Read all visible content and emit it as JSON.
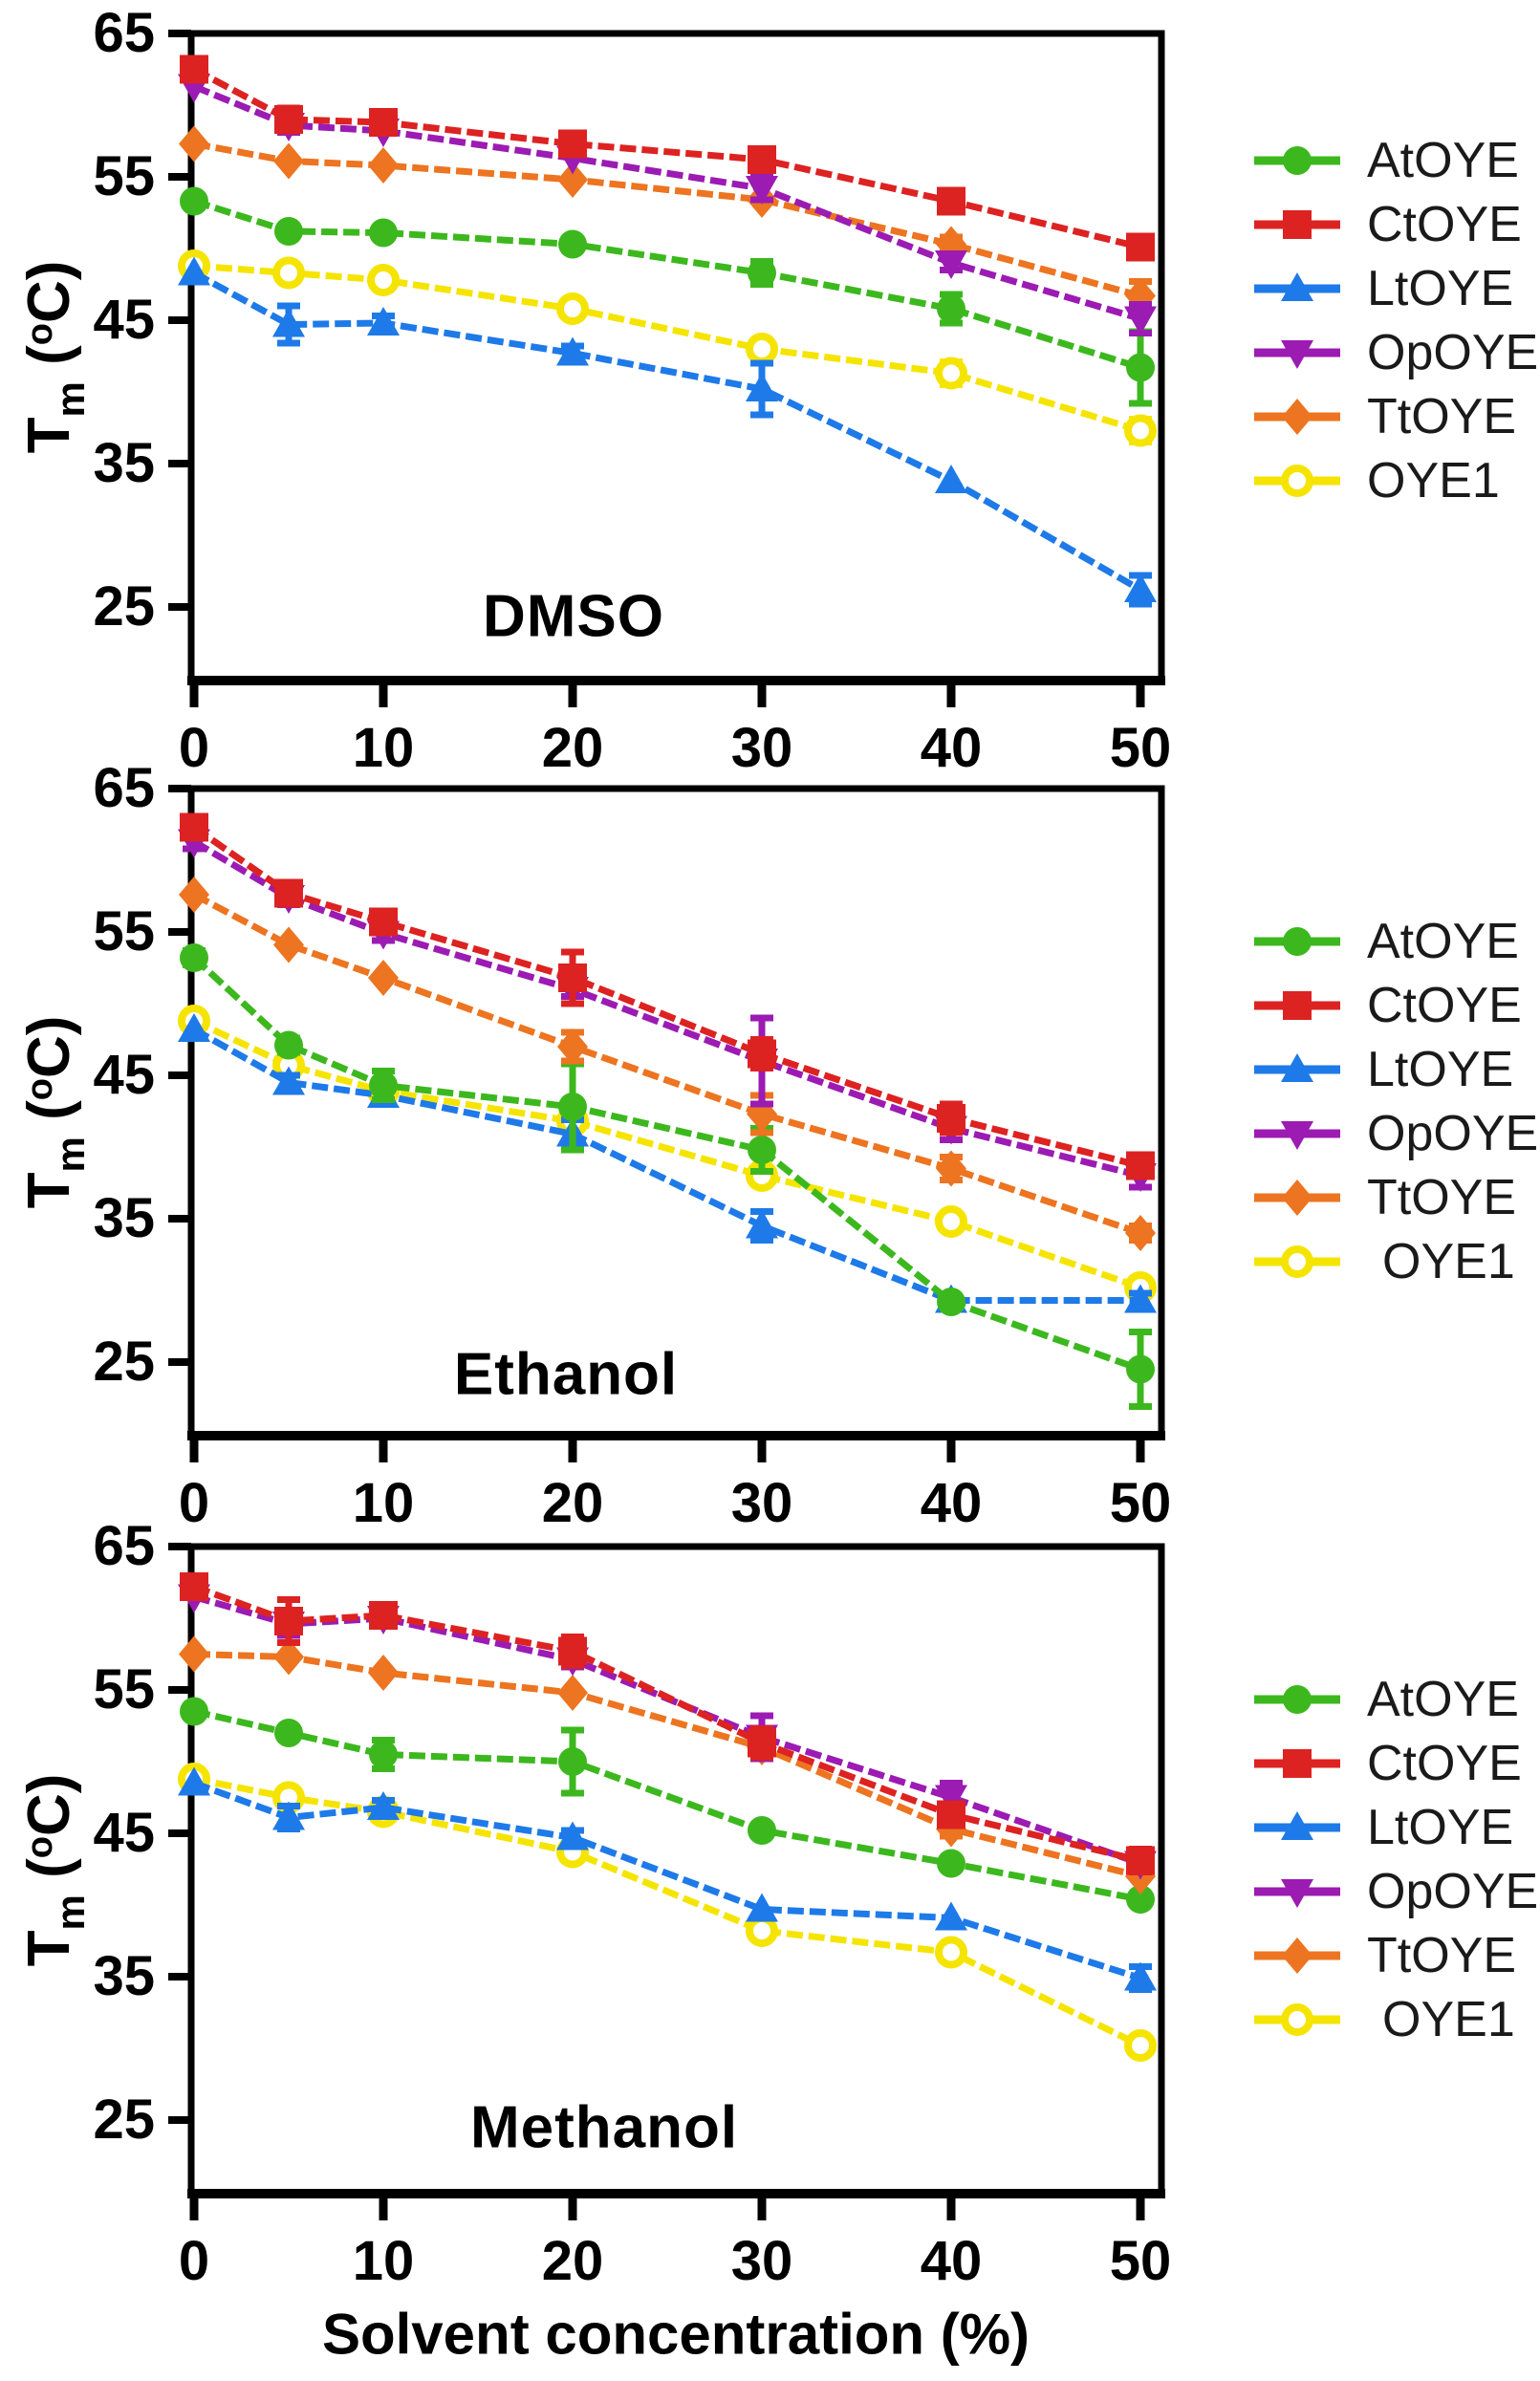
{
  "figure": {
    "x_axis": {
      "title": "Solvent concentration (%)",
      "ticks": [
        0,
        10,
        20,
        30,
        40,
        50
      ]
    },
    "y_axis": {
      "ticks": [
        65,
        55,
        45,
        35,
        25
      ],
      "title_main": "T",
      "title_sub": "m",
      "title_open": " (",
      "title_deg": "o",
      "title_close": "C)"
    },
    "background": "#ffffff",
    "axis_color": "#000000",
    "legend_text_color": "#1a1a1a"
  },
  "series_meta": [
    {
      "name": "AtOYE",
      "color": "#3CB81E",
      "marker": "circle"
    },
    {
      "name": "CtOYE",
      "color": "#DD2222",
      "marker": "square"
    },
    {
      "name": "LtOYE",
      "color": "#1E7AE8",
      "marker": "triangle-up"
    },
    {
      "name": "OpOYE",
      "color": "#9B1BB3",
      "marker": "triangle-down"
    },
    {
      "name": "TtOYE",
      "color": "#ED7420",
      "marker": "diamond"
    },
    {
      "name": "OYE1",
      "color": "#F5E400",
      "marker": "circle-open"
    }
  ],
  "chart_data": [
    {
      "type": "line",
      "label": "DMSO",
      "x": [
        0,
        5,
        10,
        20,
        30,
        40,
        50
      ],
      "xlim": [
        0,
        51
      ],
      "ylim": [
        19.8,
        65
      ],
      "legend_position": "right",
      "series": [
        {
          "name": "AtOYE",
          "values": [
            53.3,
            51.2,
            51.1,
            50.3,
            48.3,
            45.8,
            41.7
          ],
          "errors": [
            0,
            0,
            0,
            0,
            0.8,
            1.0,
            2.5
          ]
        },
        {
          "name": "CtOYE",
          "values": [
            62.5,
            59.0,
            58.8,
            57.3,
            56.2,
            53.3,
            50.1
          ],
          "errors": [
            0.5,
            0.8,
            0.5,
            0.5,
            0.5,
            0.5,
            0.5
          ]
        },
        {
          "name": "LtOYE",
          "values": [
            48.3,
            44.7,
            44.8,
            42.7,
            40.2,
            33.8,
            26.2
          ],
          "errors": [
            0,
            1.3,
            0.5,
            0.5,
            1.8,
            0,
            1.0
          ]
        },
        {
          "name": "OpOYE",
          "values": [
            61.3,
            58.6,
            58.2,
            56.3,
            54.2,
            49.0,
            45.1
          ],
          "errors": [
            0,
            0.5,
            0,
            0,
            0.8,
            0.5,
            1.0
          ]
        },
        {
          "name": "TtOYE",
          "values": [
            57.3,
            56.1,
            55.8,
            54.8,
            53.4,
            50.3,
            46.7
          ],
          "errors": [
            0,
            0,
            0,
            0,
            0,
            0.5,
            1.0
          ]
        },
        {
          "name": "OYE1",
          "values": [
            48.8,
            48.3,
            47.8,
            45.8,
            43.0,
            41.3,
            37.3
          ],
          "errors": [
            0,
            0,
            0,
            0,
            0.5,
            0.8,
            0.8
          ]
        }
      ]
    },
    {
      "type": "line",
      "label": "Ethanol",
      "x": [
        0,
        5,
        10,
        20,
        30,
        40,
        50
      ],
      "xlim": [
        0,
        51
      ],
      "ylim": [
        19.8,
        65
      ],
      "legend_position": "right",
      "series": [
        {
          "name": "AtOYE",
          "values": [
            53.2,
            47.1,
            44.3,
            42.8,
            39.8,
            29.2,
            24.5
          ],
          "errors": [
            0.5,
            0.5,
            1.0,
            3.0,
            1.5,
            0,
            2.6
          ]
        },
        {
          "name": "CtOYE",
          "values": [
            62.3,
            57.7,
            55.7,
            51.8,
            46.5,
            42.0,
            38.7
          ],
          "errors": [
            0.5,
            0.5,
            0.5,
            1.8,
            1.0,
            1.0,
            0.5
          ]
        },
        {
          "name": "LtOYE",
          "values": [
            48.2,
            44.5,
            43.6,
            40.9,
            34.5,
            29.3,
            29.3
          ],
          "errors": [
            0,
            0.5,
            0.5,
            1.0,
            1.0,
            0,
            0.5
          ]
        },
        {
          "name": "OpOYE",
          "values": [
            61.3,
            57.4,
            54.9,
            51.0,
            46.0,
            41.3,
            38.0
          ],
          "errors": [
            0.5,
            0.5,
            0.5,
            0.5,
            3.0,
            0.8,
            0.8
          ]
        },
        {
          "name": "TtOYE",
          "values": [
            57.6,
            54.1,
            51.8,
            47.0,
            42.3,
            38.5,
            34.0
          ],
          "errors": [
            0,
            0,
            0,
            1.0,
            1.3,
            0.8,
            0.5
          ]
        },
        {
          "name": "OYE1",
          "values": [
            48.8,
            45.7,
            43.9,
            41.8,
            38.0,
            34.8,
            30.2
          ],
          "errors": [
            0,
            0.5,
            0,
            0,
            0,
            0,
            0.5
          ]
        }
      ]
    },
    {
      "type": "line",
      "label": "Methanol",
      "x": [
        0,
        5,
        10,
        20,
        30,
        40,
        50
      ],
      "xlim": [
        0,
        51
      ],
      "ylim": [
        19.8,
        65
      ],
      "legend_position": "right",
      "series": [
        {
          "name": "AtOYE",
          "values": [
            53.5,
            52.0,
            50.5,
            50.0,
            45.2,
            42.9,
            40.4
          ],
          "errors": [
            0,
            0,
            1.0,
            2.2,
            0,
            0,
            0
          ]
        },
        {
          "name": "CtOYE",
          "values": [
            62.2,
            59.8,
            60.2,
            57.7,
            51.3,
            46.3,
            43.1
          ],
          "errors": [
            0.5,
            1.5,
            0.5,
            1.0,
            1.0,
            0.5,
            0.8
          ]
        },
        {
          "name": "LtOYE",
          "values": [
            48.5,
            46.1,
            46.8,
            44.7,
            39.7,
            39.1,
            34.9
          ],
          "errors": [
            0,
            0.8,
            0.5,
            0.5,
            0,
            0,
            0.8
          ]
        },
        {
          "name": "OpOYE",
          "values": [
            61.5,
            59.6,
            60.0,
            57.1,
            51.7,
            47.5,
            42.9
          ],
          "errors": [
            0,
            0.8,
            0,
            0.5,
            1.5,
            1.0,
            0
          ]
        },
        {
          "name": "TtOYE",
          "values": [
            57.5,
            57.3,
            56.2,
            54.8,
            51.0,
            45.3,
            42.0
          ],
          "errors": [
            0,
            0,
            0,
            0,
            0,
            0.5,
            0
          ]
        },
        {
          "name": "OYE1",
          "values": [
            48.8,
            47.5,
            46.5,
            43.7,
            38.2,
            36.7,
            30.2
          ],
          "errors": [
            0,
            0.5,
            0,
            0,
            0,
            0,
            0
          ]
        }
      ]
    }
  ]
}
